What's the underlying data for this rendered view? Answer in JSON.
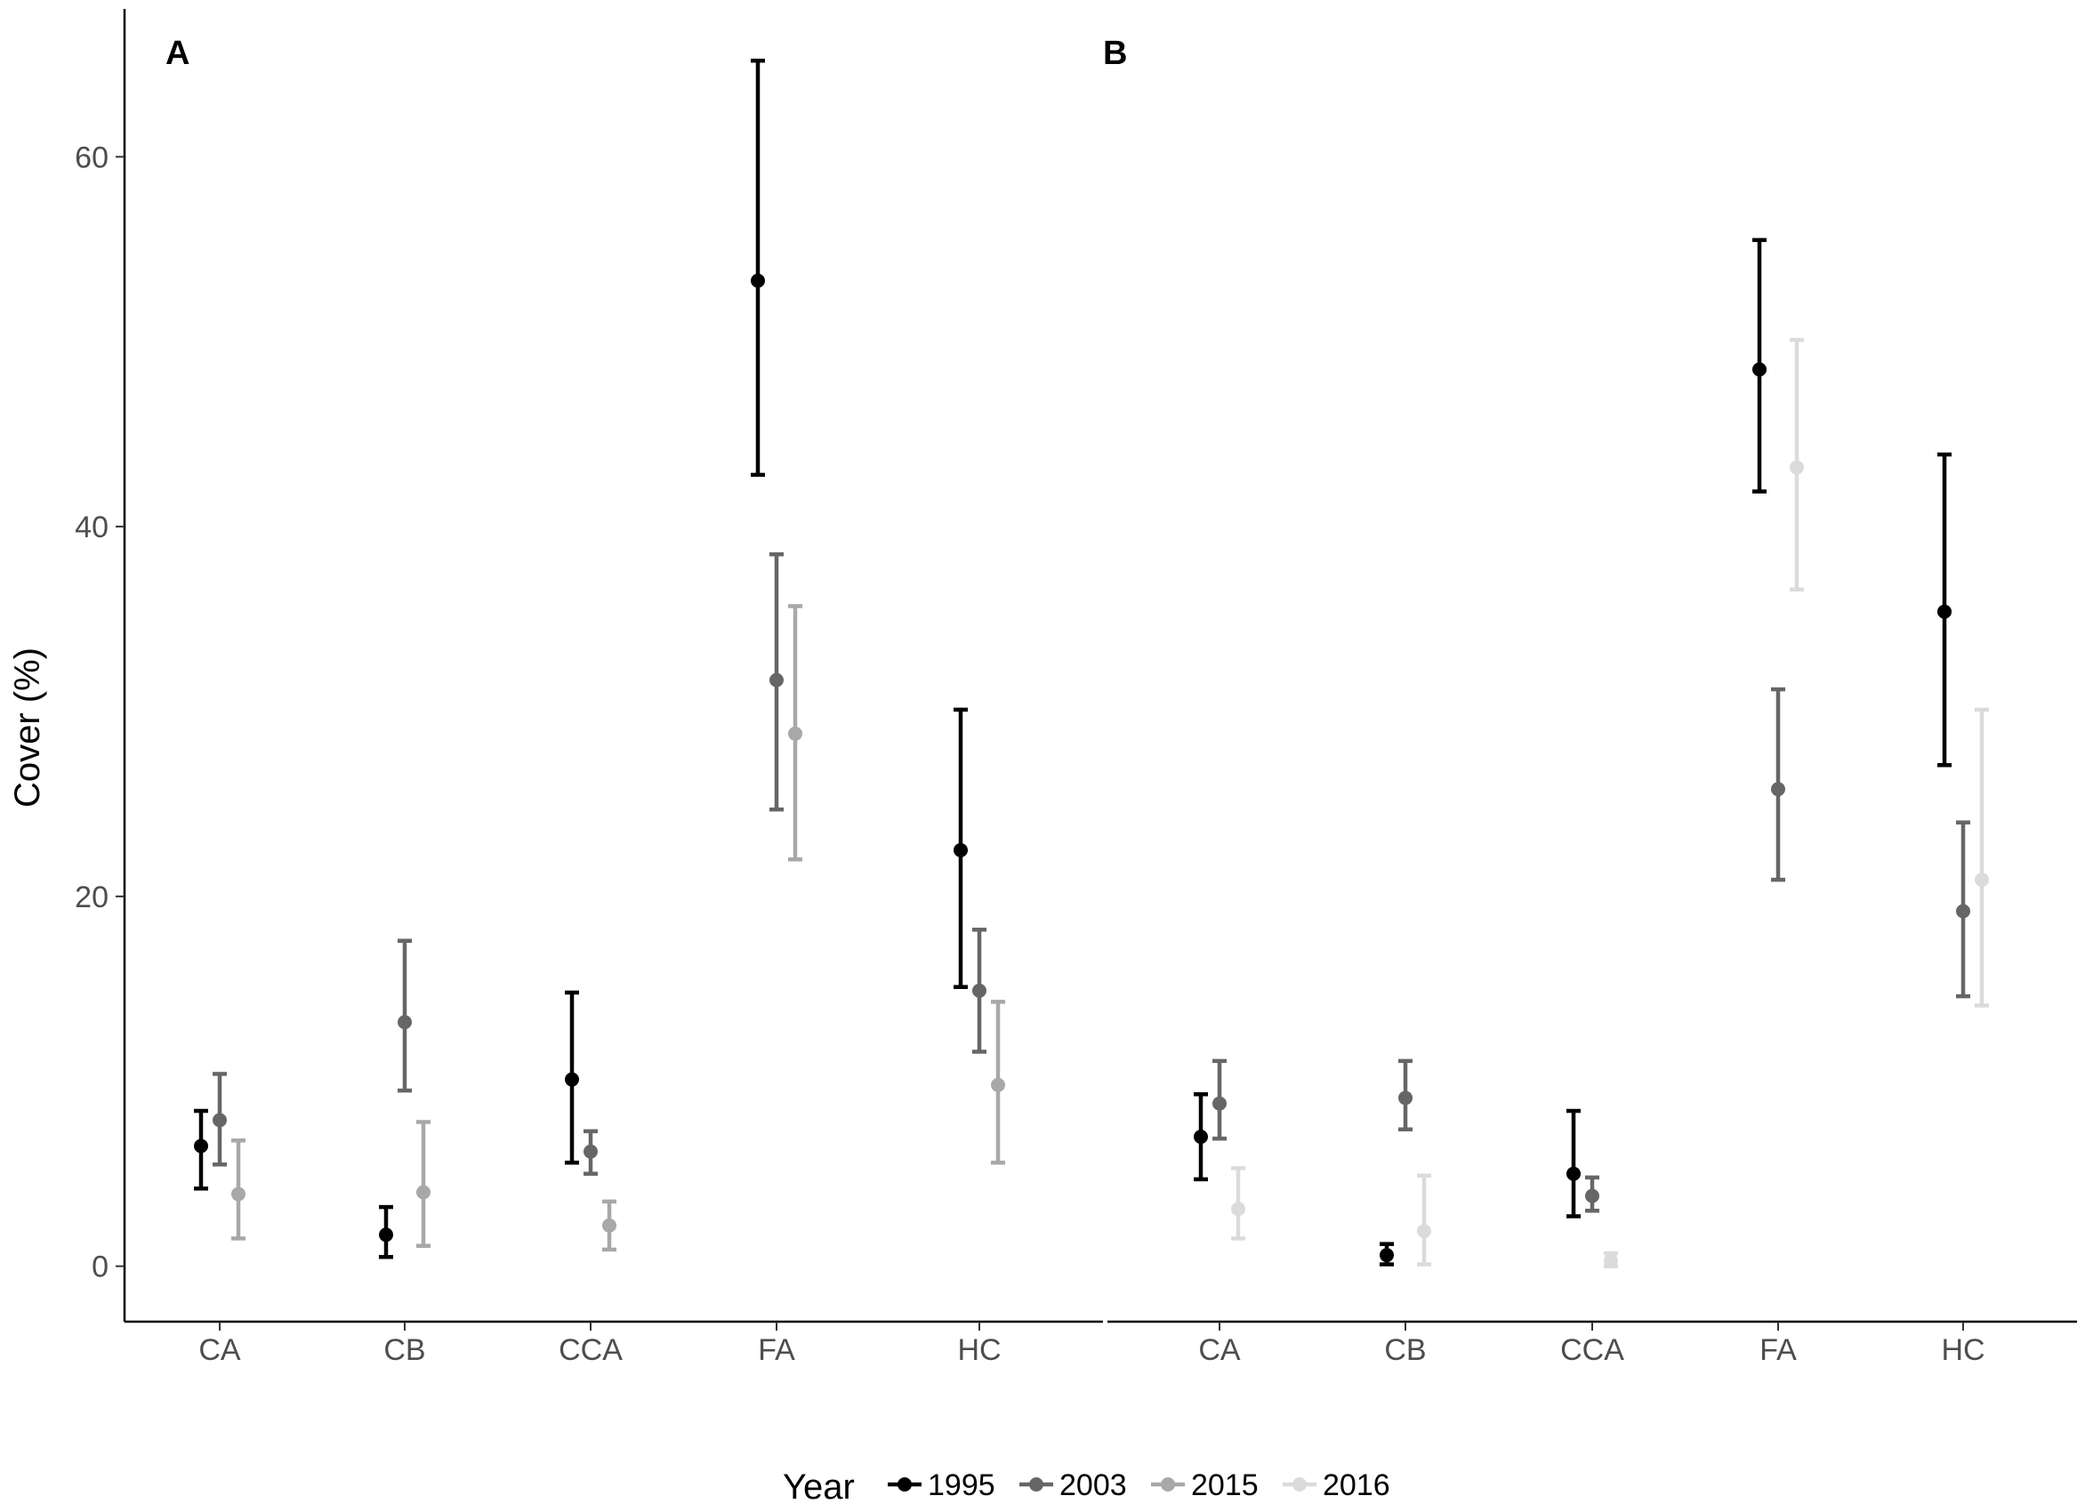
{
  "chart_data": {
    "type": "scatter",
    "subtype": "pointrange-errorbar",
    "ylabel": "Cover (%)",
    "ylim": [
      -3,
      68
    ],
    "yticks": [
      0,
      20,
      40,
      60
    ],
    "categories": [
      "CA",
      "CB",
      "CCA",
      "FA",
      "HC"
    ],
    "legend": {
      "title": "Year",
      "position": "bottom",
      "entries": [
        {
          "name": "1995",
          "color": "#000000"
        },
        {
          "name": "2003",
          "color": "#666666"
        },
        {
          "name": "2015",
          "color": "#a8a8a8"
        },
        {
          "name": "2016",
          "color": "#dbdbdb"
        }
      ]
    },
    "panels": [
      {
        "label": "A",
        "series": [
          {
            "name": "1995",
            "color": "#000000",
            "points": [
              {
                "category": "CA",
                "value": 6.5,
                "low": 4.2,
                "high": 8.4
              },
              {
                "category": "CB",
                "value": 1.7,
                "low": 0.5,
                "high": 3.2
              },
              {
                "category": "CCA",
                "value": 10.1,
                "low": 5.6,
                "high": 14.8
              },
              {
                "category": "FA",
                "value": 53.3,
                "low": 42.8,
                "high": 65.2
              },
              {
                "category": "HC",
                "value": 22.5,
                "low": 15.1,
                "high": 30.1
              }
            ]
          },
          {
            "name": "2003",
            "color": "#666666",
            "points": [
              {
                "category": "CA",
                "value": 7.9,
                "low": 5.5,
                "high": 10.4
              },
              {
                "category": "CB",
                "value": 13.2,
                "low": 9.5,
                "high": 17.6
              },
              {
                "category": "CCA",
                "value": 6.2,
                "low": 5.0,
                "high": 7.3
              },
              {
                "category": "FA",
                "value": 31.7,
                "low": 24.7,
                "high": 38.5
              },
              {
                "category": "HC",
                "value": 14.9,
                "low": 11.6,
                "high": 18.2
              }
            ]
          },
          {
            "name": "2015",
            "color": "#a8a8a8",
            "points": [
              {
                "category": "CA",
                "value": 3.9,
                "low": 1.5,
                "high": 6.8
              },
              {
                "category": "CB",
                "value": 4.0,
                "low": 1.1,
                "high": 7.8
              },
              {
                "category": "CCA",
                "value": 2.2,
                "low": 0.9,
                "high": 3.5
              },
              {
                "category": "FA",
                "value": 28.8,
                "low": 22.0,
                "high": 35.7
              },
              {
                "category": "HC",
                "value": 9.8,
                "low": 5.6,
                "high": 14.3
              }
            ]
          }
        ]
      },
      {
        "label": "B",
        "series": [
          {
            "name": "1995",
            "color": "#000000",
            "points": [
              {
                "category": "CA",
                "value": 7.0,
                "low": 4.7,
                "high": 9.3
              },
              {
                "category": "CB",
                "value": 0.6,
                "low": 0.1,
                "high": 1.2
              },
              {
                "category": "CCA",
                "value": 5.0,
                "low": 2.7,
                "high": 8.4
              },
              {
                "category": "FA",
                "value": 48.5,
                "low": 41.9,
                "high": 55.5
              },
              {
                "category": "HC",
                "value": 35.4,
                "low": 27.1,
                "high": 43.9
              }
            ]
          },
          {
            "name": "2003",
            "color": "#666666",
            "points": [
              {
                "category": "CA",
                "value": 8.8,
                "low": 6.9,
                "high": 11.1
              },
              {
                "category": "CB",
                "value": 9.1,
                "low": 7.4,
                "high": 11.1
              },
              {
                "category": "CCA",
                "value": 3.8,
                "low": 3.0,
                "high": 4.8
              },
              {
                "category": "FA",
                "value": 25.8,
                "low": 20.9,
                "high": 31.2
              },
              {
                "category": "HC",
                "value": 19.2,
                "low": 14.6,
                "high": 24.0
              }
            ]
          },
          {
            "name": "2016",
            "color": "#dbdbdb",
            "points": [
              {
                "category": "CA",
                "value": 3.1,
                "low": 1.5,
                "high": 5.3
              },
              {
                "category": "CB",
                "value": 1.9,
                "low": 0.1,
                "high": 4.9
              },
              {
                "category": "CCA",
                "value": 0.3,
                "low": 0.0,
                "high": 0.7
              },
              {
                "category": "FA",
                "value": 43.2,
                "low": 36.6,
                "high": 50.1
              },
              {
                "category": "HC",
                "value": 20.9,
                "low": 14.1,
                "high": 30.1
              }
            ]
          }
        ]
      }
    ]
  }
}
